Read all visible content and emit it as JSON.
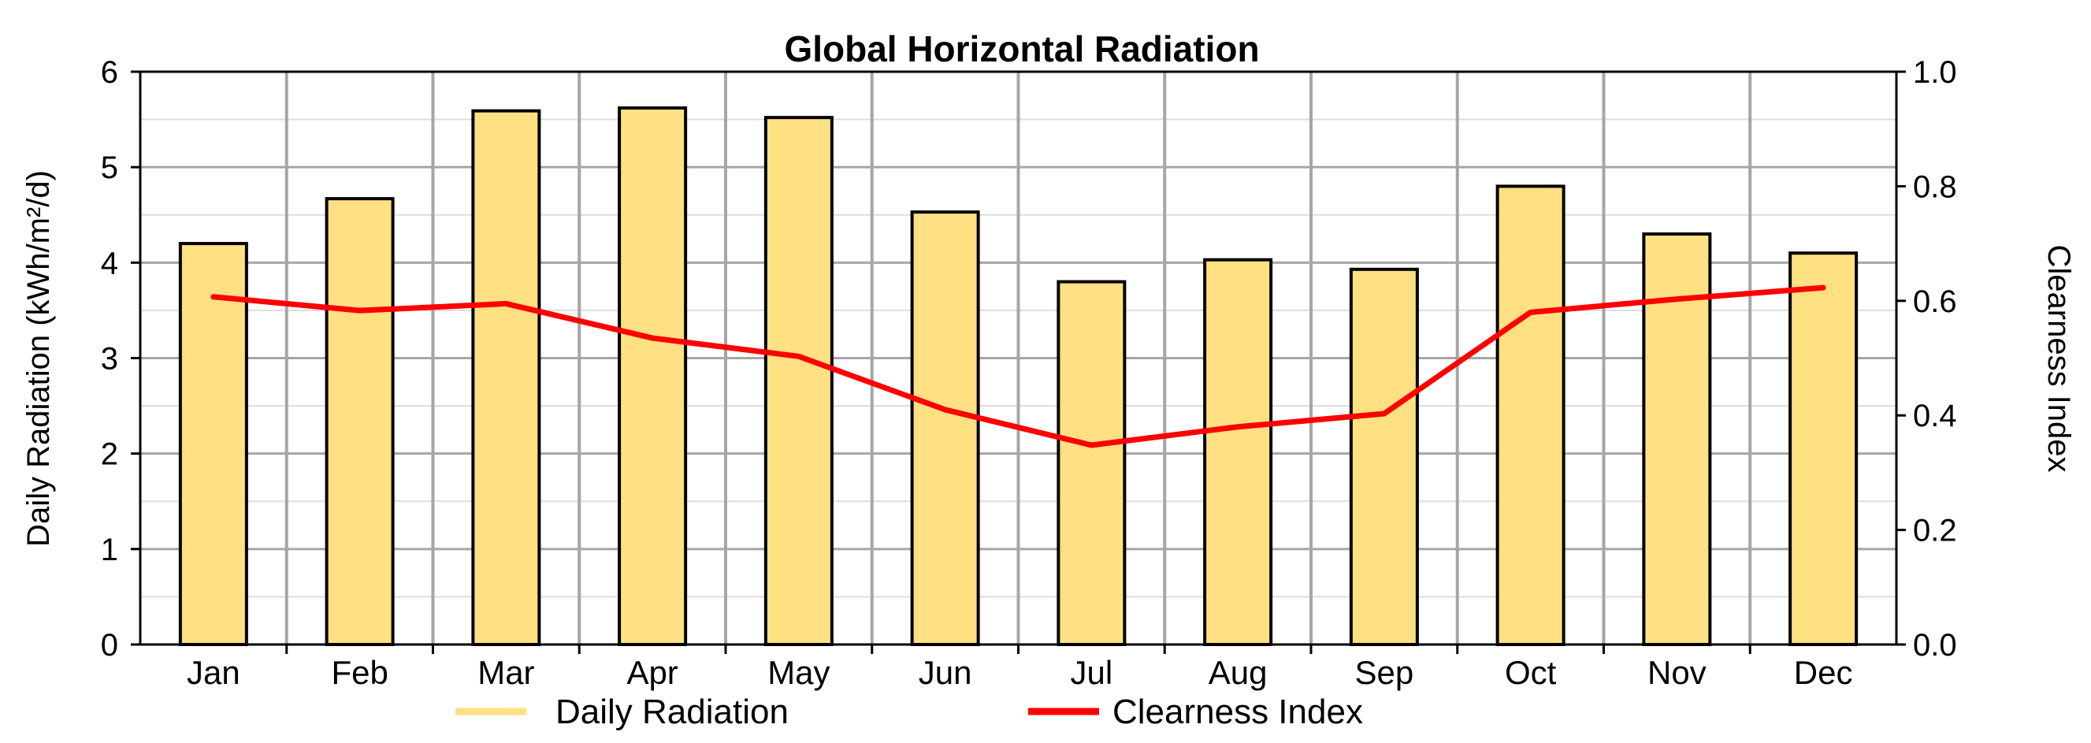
{
  "chart_data": {
    "type": "bar",
    "title": "Global Horizontal Radiation",
    "categories": [
      "Jan",
      "Feb",
      "Mar",
      "Apr",
      "May",
      "Jun",
      "Jul",
      "Aug",
      "Sep",
      "Oct",
      "Nov",
      "Dec"
    ],
    "series": [
      {
        "name": "Daily Radiation",
        "type": "bar",
        "axis": "left",
        "color": "#FFE082",
        "values": [
          4.2,
          4.67,
          5.59,
          5.62,
          5.52,
          4.53,
          3.8,
          4.03,
          3.93,
          4.8,
          4.3,
          4.1
        ]
      },
      {
        "name": "Clearness Index",
        "type": "line",
        "axis": "right",
        "color": "#FF0000",
        "values": [
          0.607,
          0.583,
          0.595,
          0.535,
          0.503,
          0.41,
          0.348,
          0.38,
          0.403,
          0.58,
          0.603,
          0.623
        ]
      }
    ],
    "ylabel_left": "Daily Radiation (kWh/m²/d)",
    "ylabel_right": "Clearness Index",
    "ylim_left": [
      0,
      6
    ],
    "ylim_right": [
      0,
      1.0
    ],
    "yticks_left": [
      "0",
      "1",
      "2",
      "3",
      "4",
      "5",
      "6"
    ],
    "yticks_right": [
      "0.0",
      "0.2",
      "0.4",
      "0.6",
      "0.8",
      "1.0"
    ],
    "legend_position": "bottom",
    "grid": true
  }
}
